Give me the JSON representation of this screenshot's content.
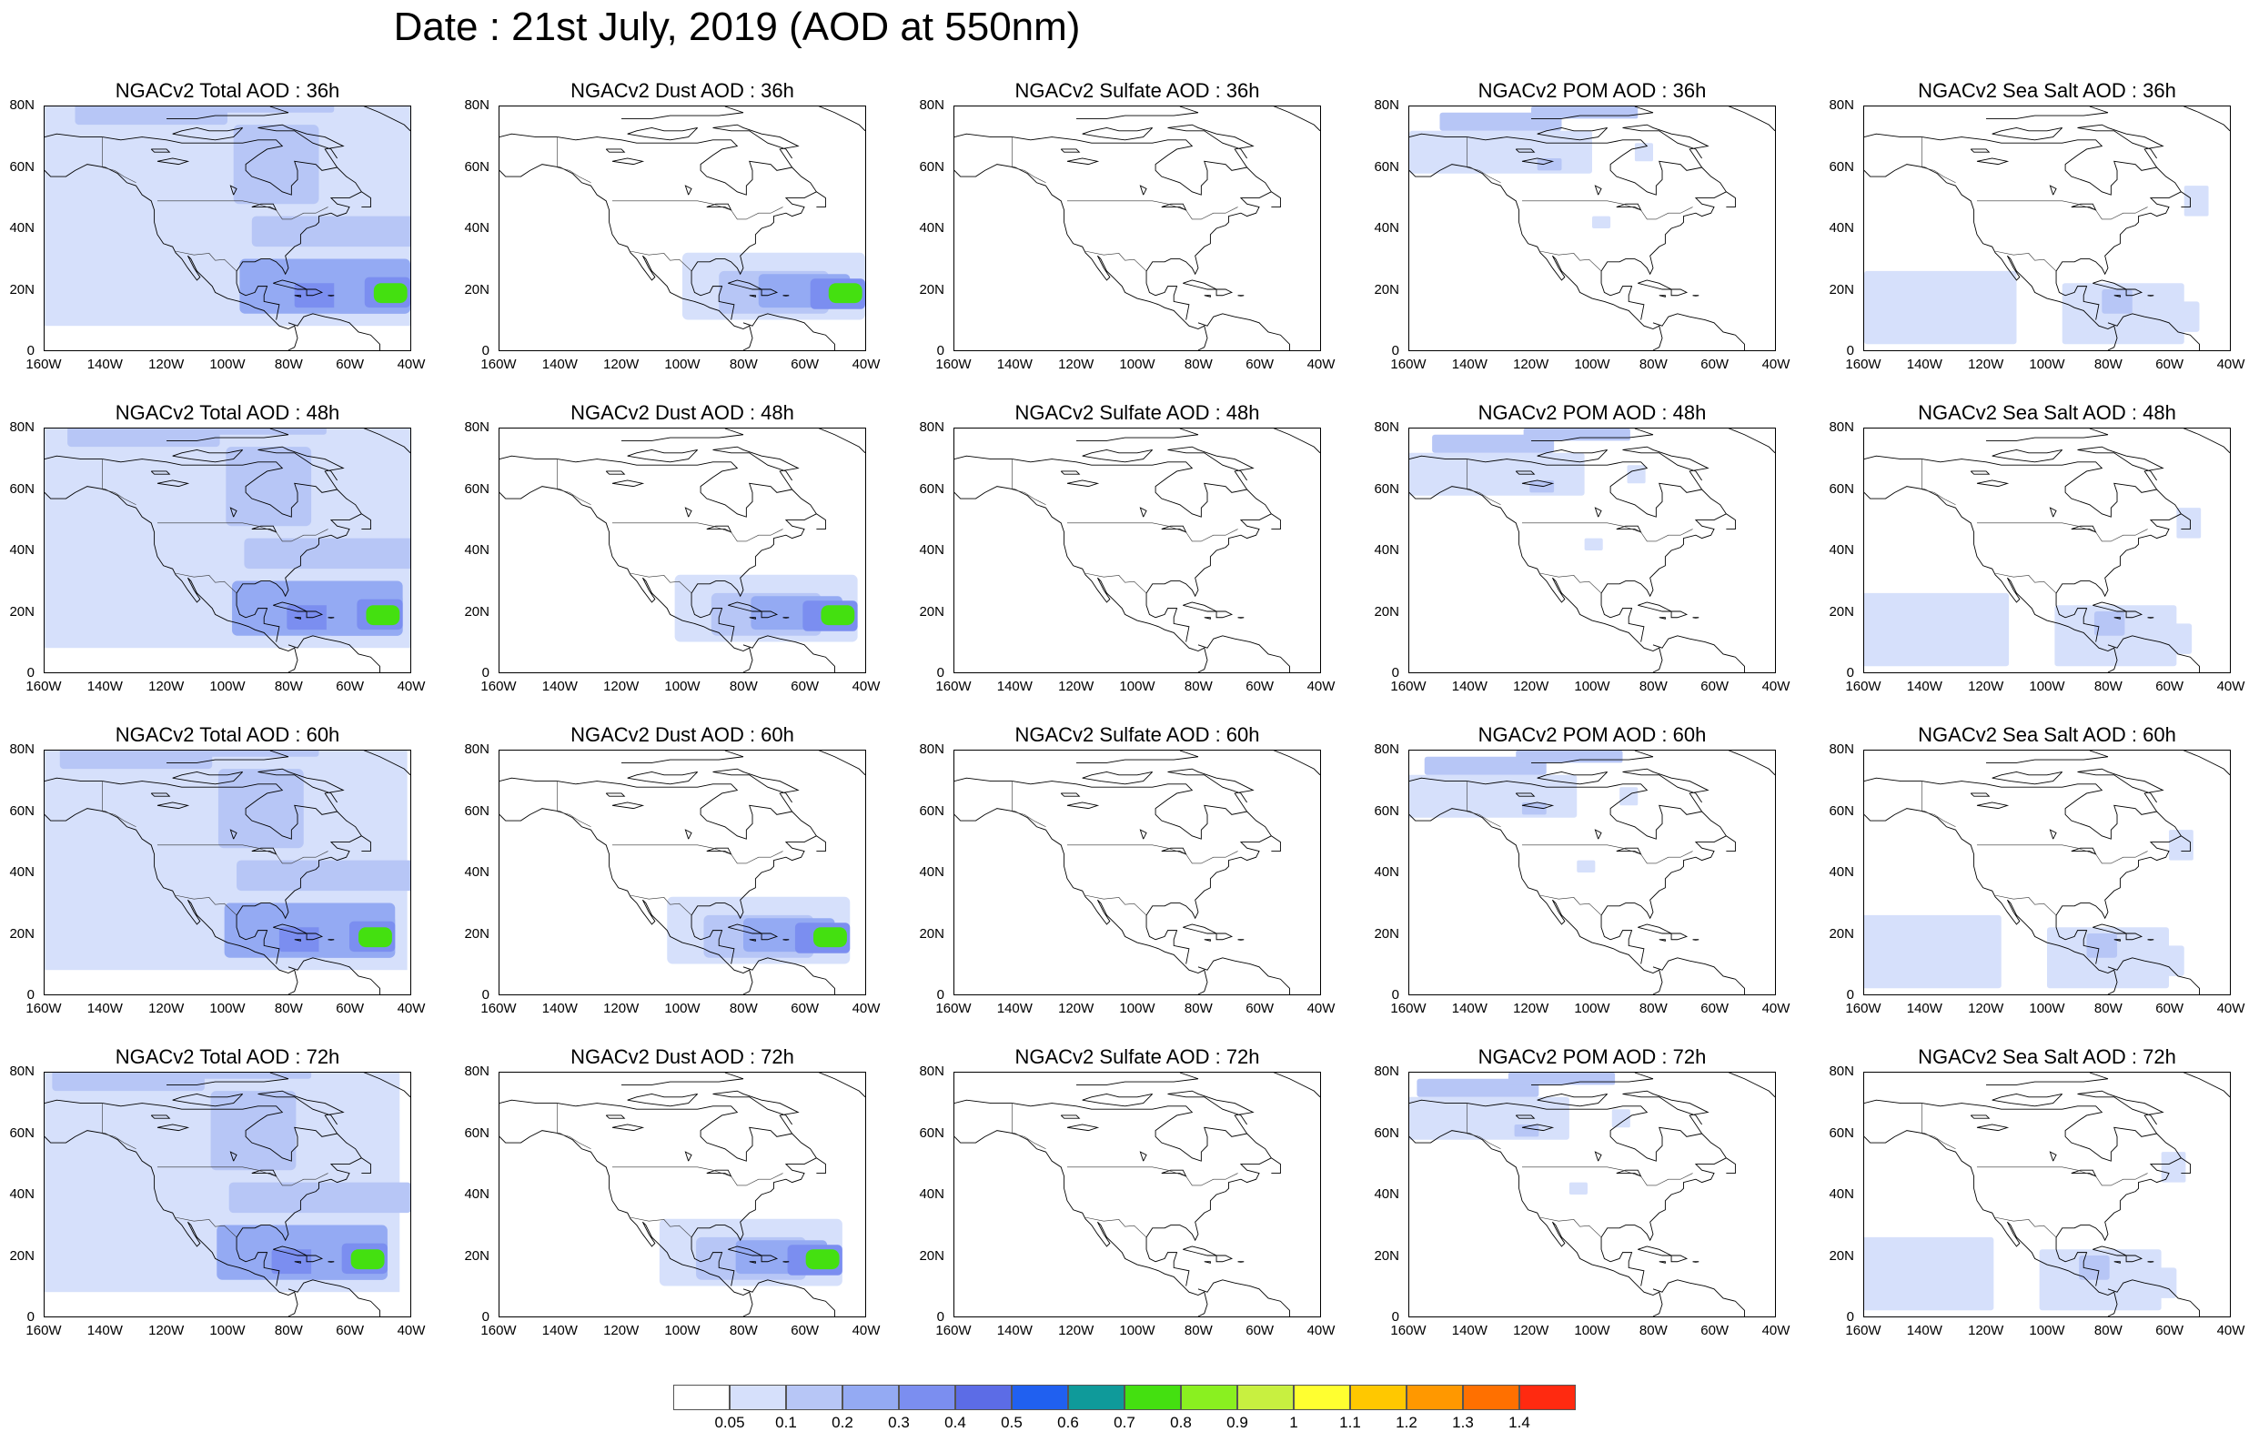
{
  "title": "Date : 21st July, 2019 (AOD at 550nm)",
  "axes": {
    "y_ticks": [
      "80N",
      "60N",
      "40N",
      "20N",
      "0"
    ],
    "x_ticks": [
      "160W",
      "140W",
      "120W",
      "100W",
      "80W",
      "60W",
      "40W"
    ]
  },
  "panels": [
    {
      "title": "NGACv2 Total AOD : 36h",
      "species": "total",
      "hour": 36
    },
    {
      "title": "NGACv2 Dust AOD : 36h",
      "species": "dust",
      "hour": 36
    },
    {
      "title": "NGACv2 Sulfate AOD : 36h",
      "species": "sulfate",
      "hour": 36
    },
    {
      "title": "NGACv2 POM AOD : 36h",
      "species": "pom",
      "hour": 36
    },
    {
      "title": "NGACv2 Sea Salt AOD : 36h",
      "species": "seasalt",
      "hour": 36
    },
    {
      "title": "NGACv2 Total AOD : 48h",
      "species": "total",
      "hour": 48
    },
    {
      "title": "NGACv2 Dust AOD : 48h",
      "species": "dust",
      "hour": 48
    },
    {
      "title": "NGACv2 Sulfate AOD : 48h",
      "species": "sulfate",
      "hour": 48
    },
    {
      "title": "NGACv2 POM AOD : 48h",
      "species": "pom",
      "hour": 48
    },
    {
      "title": "NGACv2 Sea Salt AOD : 48h",
      "species": "seasalt",
      "hour": 48
    },
    {
      "title": "NGACv2 Total AOD : 60h",
      "species": "total",
      "hour": 60
    },
    {
      "title": "NGACv2 Dust AOD : 60h",
      "species": "dust",
      "hour": 60
    },
    {
      "title": "NGACv2 Sulfate AOD : 60h",
      "species": "sulfate",
      "hour": 60
    },
    {
      "title": "NGACv2 POM AOD : 60h",
      "species": "pom",
      "hour": 60
    },
    {
      "title": "NGACv2 Sea Salt AOD : 60h",
      "species": "seasalt",
      "hour": 60
    },
    {
      "title": "NGACv2 Total AOD : 72h",
      "species": "total",
      "hour": 72
    },
    {
      "title": "NGACv2 Dust AOD : 72h",
      "species": "dust",
      "hour": 72
    },
    {
      "title": "NGACv2 Sulfate AOD : 72h",
      "species": "sulfate",
      "hour": 72
    },
    {
      "title": "NGACv2 POM AOD : 72h",
      "species": "pom",
      "hour": 72
    },
    {
      "title": "NGACv2 Sea Salt  AOD : 72h",
      "species": "seasalt",
      "hour": 72
    }
  ],
  "colorbar": {
    "labels": [
      "0.05",
      "0.1",
      "0.2",
      "0.3",
      "0.4",
      "0.5",
      "0.6",
      "0.7",
      "0.8",
      "0.9",
      "1",
      "1.1",
      "1.2",
      "1.3",
      "1.4"
    ],
    "colors": [
      "#ffffff",
      "#d6e0fb",
      "#b7c6f6",
      "#94aaf3",
      "#7b8ef0",
      "#5c6ce6",
      "#2060f0",
      "#0f9a9a",
      "#44e010",
      "#8af020",
      "#c8f040",
      "#ffff30",
      "#ffc800",
      "#ff9800",
      "#ff7000",
      "#ff2a10"
    ]
  }
}
